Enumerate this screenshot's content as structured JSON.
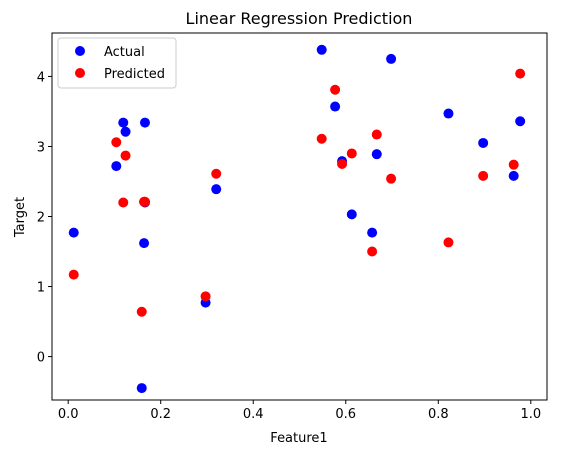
{
  "chart_data": {
    "type": "scatter",
    "title": "Linear Regression Prediction",
    "xlabel": "Feature1",
    "ylabel": "Target",
    "xlim": [
      -0.035,
      1.035
    ],
    "ylim": [
      -0.62,
      4.62
    ],
    "xticks": [
      0.0,
      0.2,
      0.4,
      0.6,
      0.8,
      1.0
    ],
    "xtick_labels": [
      "0.0",
      "0.2",
      "0.4",
      "0.6",
      "0.8",
      "1.0"
    ],
    "yticks": [
      0,
      1,
      2,
      3,
      4
    ],
    "ytick_labels": [
      "0",
      "1",
      "2",
      "3",
      "4"
    ],
    "grid": false,
    "legend_position": "upper-left",
    "series": [
      {
        "name": "Actual",
        "color": "#0000ff",
        "points": [
          {
            "x": 0.012,
            "y": 1.77
          },
          {
            "x": 0.104,
            "y": 2.72
          },
          {
            "x": 0.119,
            "y": 3.34
          },
          {
            "x": 0.124,
            "y": 3.21
          },
          {
            "x": 0.159,
            "y": -0.45
          },
          {
            "x": 0.164,
            "y": 1.62
          },
          {
            "x": 0.166,
            "y": 3.34
          },
          {
            "x": 0.166,
            "y": 2.2
          },
          {
            "x": 0.297,
            "y": 0.77
          },
          {
            "x": 0.32,
            "y": 2.39
          },
          {
            "x": 0.548,
            "y": 4.38
          },
          {
            "x": 0.577,
            "y": 3.57
          },
          {
            "x": 0.592,
            "y": 2.79
          },
          {
            "x": 0.613,
            "y": 2.03
          },
          {
            "x": 0.657,
            "y": 1.77
          },
          {
            "x": 0.667,
            "y": 2.89
          },
          {
            "x": 0.698,
            "y": 4.25
          },
          {
            "x": 0.822,
            "y": 3.47
          },
          {
            "x": 0.897,
            "y": 3.05
          },
          {
            "x": 0.963,
            "y": 2.58
          },
          {
            "x": 0.977,
            "y": 3.36
          }
        ]
      },
      {
        "name": "Predicted",
        "color": "#ff0000",
        "points": [
          {
            "x": 0.012,
            "y": 1.17
          },
          {
            "x": 0.104,
            "y": 3.06
          },
          {
            "x": 0.119,
            "y": 2.2
          },
          {
            "x": 0.124,
            "y": 2.87
          },
          {
            "x": 0.159,
            "y": 0.64
          },
          {
            "x": 0.164,
            "y": 2.21
          },
          {
            "x": 0.166,
            "y": 2.21
          },
          {
            "x": 0.297,
            "y": 0.86
          },
          {
            "x": 0.32,
            "y": 2.61
          },
          {
            "x": 0.548,
            "y": 3.11
          },
          {
            "x": 0.577,
            "y": 3.81
          },
          {
            "x": 0.592,
            "y": 2.75
          },
          {
            "x": 0.613,
            "y": 2.9
          },
          {
            "x": 0.657,
            "y": 1.5
          },
          {
            "x": 0.667,
            "y": 3.17
          },
          {
            "x": 0.698,
            "y": 2.54
          },
          {
            "x": 0.822,
            "y": 1.63
          },
          {
            "x": 0.897,
            "y": 2.58
          },
          {
            "x": 0.963,
            "y": 2.74
          },
          {
            "x": 0.977,
            "y": 4.04
          }
        ]
      }
    ]
  }
}
